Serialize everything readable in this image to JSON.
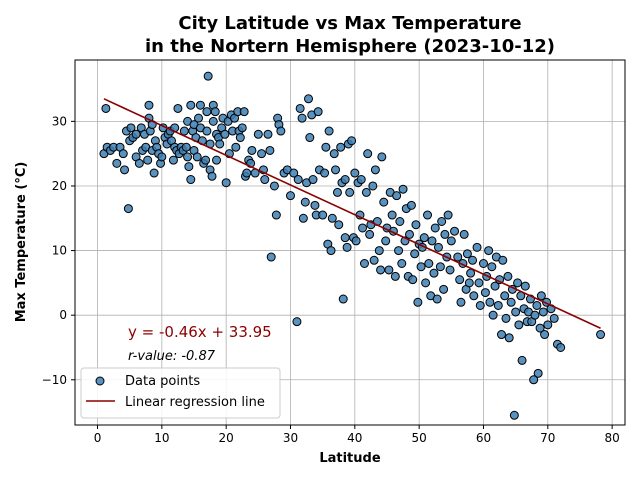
{
  "chart_data": {
    "type": "scatter",
    "title_line1": "City Latitude vs Max Temperature",
    "title_line2": "in the Nortern Hemisphere (2023-10-12)",
    "xlabel": "Latitude",
    "ylabel": "Max Temperature (°C)",
    "xlim": [
      -3.5,
      82
    ],
    "ylim": [
      -17,
      39.5
    ],
    "xticks": [
      0,
      10,
      20,
      30,
      40,
      50,
      60,
      70,
      80
    ],
    "yticks": [
      -10,
      0,
      10,
      20,
      30
    ],
    "ytick_labels": [
      "−10",
      "0",
      "10",
      "20",
      "30"
    ],
    "grid": true,
    "legend_placement": "lower-left",
    "series": [
      {
        "name": "Data points",
        "kind": "scatter",
        "color": "#3d7fb4",
        "points": [
          [
            1.0,
            25.0
          ],
          [
            1.3,
            32.0
          ],
          [
            1.5,
            26.0
          ],
          [
            2.0,
            25.5
          ],
          [
            2.5,
            26.0
          ],
          [
            3.0,
            23.5
          ],
          [
            3.5,
            26.0
          ],
          [
            4.0,
            25.0
          ],
          [
            4.2,
            22.5
          ],
          [
            4.5,
            28.5
          ],
          [
            4.8,
            16.5
          ],
          [
            5.0,
            27.0
          ],
          [
            5.2,
            29.0
          ],
          [
            5.5,
            27.5
          ],
          [
            6.0,
            24.5
          ],
          [
            6.0,
            28.0
          ],
          [
            6.5,
            23.5
          ],
          [
            6.8,
            29.0
          ],
          [
            7.0,
            25.5
          ],
          [
            7.3,
            28.0
          ],
          [
            7.5,
            26.0
          ],
          [
            7.8,
            24.0
          ],
          [
            8.0,
            32.5
          ],
          [
            8.0,
            30.5
          ],
          [
            8.2,
            28.5
          ],
          [
            8.5,
            29.5
          ],
          [
            8.5,
            25.5
          ],
          [
            8.8,
            22.0
          ],
          [
            9.0,
            27.0
          ],
          [
            9.2,
            26.0
          ],
          [
            9.5,
            25.0
          ],
          [
            9.8,
            23.5
          ],
          [
            10.0,
            24.5
          ],
          [
            10.2,
            29.0
          ],
          [
            10.5,
            27.5
          ],
          [
            10.8,
            26.5
          ],
          [
            11.0,
            28.0
          ],
          [
            11.3,
            28.5
          ],
          [
            11.5,
            27.0
          ],
          [
            11.8,
            24.0
          ],
          [
            12.0,
            26.0
          ],
          [
            12.0,
            29.0
          ],
          [
            12.3,
            25.5
          ],
          [
            12.5,
            32.0
          ],
          [
            12.7,
            25.0
          ],
          [
            13.0,
            26.0
          ],
          [
            13.3,
            25.5
          ],
          [
            13.5,
            28.5
          ],
          [
            13.8,
            26.0
          ],
          [
            14.0,
            30.0
          ],
          [
            14.0,
            24.5
          ],
          [
            14.2,
            23.0
          ],
          [
            14.5,
            32.5
          ],
          [
            14.5,
            21.0
          ],
          [
            14.8,
            28.5
          ],
          [
            15.0,
            29.5
          ],
          [
            15.0,
            25.5
          ],
          [
            15.3,
            27.5
          ],
          [
            15.5,
            24.5
          ],
          [
            15.7,
            30.5
          ],
          [
            16.0,
            32.5
          ],
          [
            16.0,
            29.0
          ],
          [
            16.3,
            27.0
          ],
          [
            16.5,
            23.5
          ],
          [
            16.8,
            24.0
          ],
          [
            17.0,
            31.5
          ],
          [
            17.0,
            28.5
          ],
          [
            17.2,
            37.0
          ],
          [
            17.5,
            26.5
          ],
          [
            17.5,
            22.5
          ],
          [
            17.8,
            21.5
          ],
          [
            18.0,
            32.5
          ],
          [
            18.0,
            30.0
          ],
          [
            18.3,
            31.5
          ],
          [
            18.5,
            24.0
          ],
          [
            18.5,
            28.0
          ],
          [
            18.8,
            27.5
          ],
          [
            19.0,
            26.5
          ],
          [
            19.3,
            29.0
          ],
          [
            19.5,
            30.5
          ],
          [
            19.8,
            28.0
          ],
          [
            20.0,
            20.5
          ],
          [
            20.3,
            30.0
          ],
          [
            20.5,
            25.0
          ],
          [
            20.8,
            31.0
          ],
          [
            21.0,
            28.5
          ],
          [
            21.3,
            30.5
          ],
          [
            21.5,
            26.0
          ],
          [
            21.8,
            31.5
          ],
          [
            22.0,
            28.5
          ],
          [
            22.2,
            27.5
          ],
          [
            22.5,
            29.0
          ],
          [
            22.8,
            31.5
          ],
          [
            23.0,
            21.5
          ],
          [
            23.2,
            22.0
          ],
          [
            23.5,
            24.0
          ],
          [
            23.8,
            23.5
          ],
          [
            24.0,
            25.5
          ],
          [
            24.5,
            22.0
          ],
          [
            25.0,
            28.0
          ],
          [
            25.5,
            25.0
          ],
          [
            25.8,
            22.5
          ],
          [
            26.0,
            21.0
          ],
          [
            26.5,
            28.0
          ],
          [
            26.8,
            25.5
          ],
          [
            27.0,
            9.0
          ],
          [
            27.5,
            20.0
          ],
          [
            27.8,
            15.5
          ],
          [
            28.0,
            30.5
          ],
          [
            28.2,
            29.5
          ],
          [
            28.5,
            28.5
          ],
          [
            29.0,
            22.0
          ],
          [
            29.5,
            22.5
          ],
          [
            30.0,
            18.5
          ],
          [
            30.5,
            22.0
          ],
          [
            31.0,
            -1.0
          ],
          [
            31.2,
            21.0
          ],
          [
            31.5,
            32.0
          ],
          [
            31.8,
            30.5
          ],
          [
            32.0,
            15.0
          ],
          [
            32.3,
            17.5
          ],
          [
            32.5,
            20.5
          ],
          [
            32.8,
            33.5
          ],
          [
            33.0,
            27.5
          ],
          [
            33.3,
            31.0
          ],
          [
            33.5,
            21.0
          ],
          [
            33.8,
            17.0
          ],
          [
            34.0,
            15.5
          ],
          [
            34.3,
            31.5
          ],
          [
            34.5,
            22.5
          ],
          [
            35.0,
            15.5
          ],
          [
            35.3,
            22.0
          ],
          [
            35.5,
            26.0
          ],
          [
            35.8,
            11.0
          ],
          [
            36.0,
            28.5
          ],
          [
            36.3,
            10.0
          ],
          [
            36.5,
            15.0
          ],
          [
            36.8,
            25.0
          ],
          [
            37.0,
            22.5
          ],
          [
            37.3,
            19.0
          ],
          [
            37.5,
            14.0
          ],
          [
            37.8,
            26.0
          ],
          [
            38.0,
            20.5
          ],
          [
            38.2,
            2.5
          ],
          [
            38.5,
            12.0
          ],
          [
            38.5,
            21.0
          ],
          [
            38.8,
            10.5
          ],
          [
            39.0,
            26.5
          ],
          [
            39.2,
            19.0
          ],
          [
            39.5,
            27.0
          ],
          [
            39.8,
            12.0
          ],
          [
            40.0,
            22.0
          ],
          [
            40.2,
            11.5
          ],
          [
            40.5,
            20.5
          ],
          [
            40.8,
            15.5
          ],
          [
            41.0,
            21.0
          ],
          [
            41.2,
            13.5
          ],
          [
            41.5,
            8.0
          ],
          [
            41.8,
            19.0
          ],
          [
            42.0,
            25.0
          ],
          [
            42.3,
            12.5
          ],
          [
            42.5,
            14.0
          ],
          [
            42.8,
            20.0
          ],
          [
            43.0,
            8.5
          ],
          [
            43.2,
            22.5
          ],
          [
            43.5,
            14.5
          ],
          [
            43.8,
            10.0
          ],
          [
            44.0,
            7.0
          ],
          [
            44.2,
            24.5
          ],
          [
            44.5,
            17.5
          ],
          [
            44.8,
            11.5
          ],
          [
            45.0,
            13.5
          ],
          [
            45.3,
            7.0
          ],
          [
            45.5,
            19.0
          ],
          [
            45.8,
            15.5
          ],
          [
            46.0,
            13.0
          ],
          [
            46.3,
            6.0
          ],
          [
            46.5,
            18.5
          ],
          [
            46.8,
            10.0
          ],
          [
            47.0,
            14.5
          ],
          [
            47.3,
            8.0
          ],
          [
            47.5,
            19.5
          ],
          [
            47.8,
            11.5
          ],
          [
            48.0,
            16.5
          ],
          [
            48.3,
            6.0
          ],
          [
            48.5,
            12.5
          ],
          [
            48.8,
            17.0
          ],
          [
            49.0,
            5.5
          ],
          [
            49.3,
            9.5
          ],
          [
            49.5,
            14.0
          ],
          [
            49.8,
            2.0
          ],
          [
            50.0,
            11.0
          ],
          [
            50.3,
            7.5
          ],
          [
            50.5,
            10.5
          ],
          [
            50.8,
            12.0
          ],
          [
            51.0,
            5.0
          ],
          [
            51.3,
            15.5
          ],
          [
            51.5,
            8.0
          ],
          [
            51.8,
            3.0
          ],
          [
            52.0,
            11.5
          ],
          [
            52.3,
            6.5
          ],
          [
            52.5,
            13.5
          ],
          [
            52.8,
            2.5
          ],
          [
            53.0,
            10.5
          ],
          [
            53.3,
            7.5
          ],
          [
            53.5,
            14.5
          ],
          [
            53.8,
            4.0
          ],
          [
            54.0,
            12.5
          ],
          [
            54.3,
            9.0
          ],
          [
            54.5,
            15.5
          ],
          [
            54.8,
            7.0
          ],
          [
            55.0,
            11.5
          ],
          [
            55.5,
            13.0
          ],
          [
            56.0,
            9.0
          ],
          [
            56.3,
            5.5
          ],
          [
            56.5,
            2.0
          ],
          [
            56.8,
            8.0
          ],
          [
            57.0,
            12.5
          ],
          [
            57.3,
            4.0
          ],
          [
            57.5,
            9.5
          ],
          [
            57.8,
            5.0
          ],
          [
            58.0,
            6.5
          ],
          [
            58.3,
            8.5
          ],
          [
            58.5,
            3.0
          ],
          [
            59.0,
            10.5
          ],
          [
            59.3,
            5.0
          ],
          [
            59.5,
            1.5
          ],
          [
            60.0,
            8.0
          ],
          [
            60.3,
            3.5
          ],
          [
            60.5,
            6.0
          ],
          [
            60.8,
            10.0
          ],
          [
            61.0,
            2.0
          ],
          [
            61.3,
            7.5
          ],
          [
            61.5,
            0.0
          ],
          [
            61.8,
            4.5
          ],
          [
            62.0,
            9.0
          ],
          [
            62.3,
            1.5
          ],
          [
            62.5,
            5.5
          ],
          [
            62.8,
            -3.0
          ],
          [
            63.0,
            8.5
          ],
          [
            63.3,
            3.0
          ],
          [
            63.5,
            -0.5
          ],
          [
            63.8,
            6.0
          ],
          [
            64.0,
            -3.5
          ],
          [
            64.3,
            2.0
          ],
          [
            64.5,
            4.0
          ],
          [
            64.8,
            -15.5
          ],
          [
            65.0,
            0.5
          ],
          [
            65.3,
            5.0
          ],
          [
            65.5,
            -1.5
          ],
          [
            65.8,
            3.0
          ],
          [
            66.0,
            -7.0
          ],
          [
            66.3,
            1.0
          ],
          [
            66.5,
            4.5
          ],
          [
            66.8,
            -1.0
          ],
          [
            67.0,
            0.5
          ],
          [
            67.3,
            2.5
          ],
          [
            67.5,
            -1.0
          ],
          [
            67.8,
            -10.0
          ],
          [
            68.0,
            0.0
          ],
          [
            68.3,
            1.5
          ],
          [
            68.5,
            -9.0
          ],
          [
            68.8,
            -2.0
          ],
          [
            69.0,
            3.0
          ],
          [
            69.3,
            0.5
          ],
          [
            69.5,
            -3.0
          ],
          [
            69.8,
            2.0
          ],
          [
            70.0,
            -1.5
          ],
          [
            70.5,
            1.0
          ],
          [
            71.0,
            -0.5
          ],
          [
            71.5,
            -4.5
          ],
          [
            72.0,
            -5.0
          ],
          [
            78.2,
            -3.0
          ]
        ]
      },
      {
        "name": "Linear regression line",
        "kind": "line",
        "color": "#8b0000",
        "slope": -0.46,
        "intercept": 33.95,
        "x_range": [
          1.0,
          78.2
        ]
      }
    ],
    "annotations": {
      "equation": "y = -0.46x + 33.95",
      "r_value": "r-value: -0.87"
    }
  }
}
